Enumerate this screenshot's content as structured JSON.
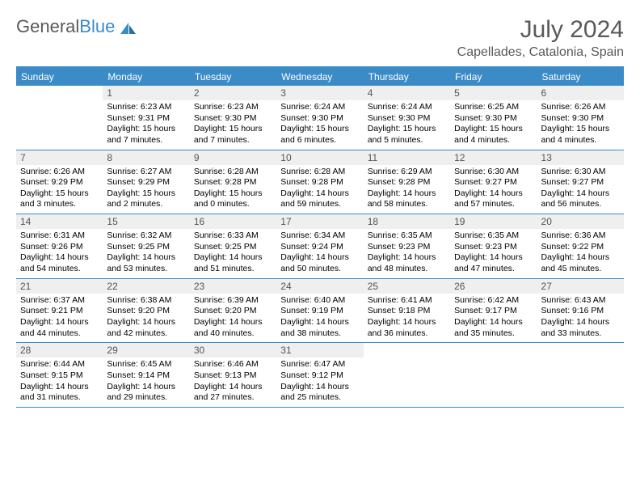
{
  "brand": {
    "part1": "General",
    "part2": "Blue"
  },
  "title": {
    "month": "July 2024",
    "location": "Capellades, Catalonia, Spain"
  },
  "colors": {
    "accent": "#3b8bc6",
    "header_text": "#58595b",
    "daynum_bg": "#efefef",
    "body_text": "#000000",
    "page_bg": "#ffffff"
  },
  "weekdays": [
    "Sunday",
    "Monday",
    "Tuesday",
    "Wednesday",
    "Thursday",
    "Friday",
    "Saturday"
  ],
  "start_offset": 1,
  "days": [
    {
      "n": 1,
      "sunrise": "6:23 AM",
      "sunset": "9:31 PM",
      "daylight": "15 hours and 7 minutes."
    },
    {
      "n": 2,
      "sunrise": "6:23 AM",
      "sunset": "9:30 PM",
      "daylight": "15 hours and 7 minutes."
    },
    {
      "n": 3,
      "sunrise": "6:24 AM",
      "sunset": "9:30 PM",
      "daylight": "15 hours and 6 minutes."
    },
    {
      "n": 4,
      "sunrise": "6:24 AM",
      "sunset": "9:30 PM",
      "daylight": "15 hours and 5 minutes."
    },
    {
      "n": 5,
      "sunrise": "6:25 AM",
      "sunset": "9:30 PM",
      "daylight": "15 hours and 4 minutes."
    },
    {
      "n": 6,
      "sunrise": "6:26 AM",
      "sunset": "9:30 PM",
      "daylight": "15 hours and 4 minutes."
    },
    {
      "n": 7,
      "sunrise": "6:26 AM",
      "sunset": "9:29 PM",
      "daylight": "15 hours and 3 minutes."
    },
    {
      "n": 8,
      "sunrise": "6:27 AM",
      "sunset": "9:29 PM",
      "daylight": "15 hours and 2 minutes."
    },
    {
      "n": 9,
      "sunrise": "6:28 AM",
      "sunset": "9:28 PM",
      "daylight": "15 hours and 0 minutes."
    },
    {
      "n": 10,
      "sunrise": "6:28 AM",
      "sunset": "9:28 PM",
      "daylight": "14 hours and 59 minutes."
    },
    {
      "n": 11,
      "sunrise": "6:29 AM",
      "sunset": "9:28 PM",
      "daylight": "14 hours and 58 minutes."
    },
    {
      "n": 12,
      "sunrise": "6:30 AM",
      "sunset": "9:27 PM",
      "daylight": "14 hours and 57 minutes."
    },
    {
      "n": 13,
      "sunrise": "6:30 AM",
      "sunset": "9:27 PM",
      "daylight": "14 hours and 56 minutes."
    },
    {
      "n": 14,
      "sunrise": "6:31 AM",
      "sunset": "9:26 PM",
      "daylight": "14 hours and 54 minutes."
    },
    {
      "n": 15,
      "sunrise": "6:32 AM",
      "sunset": "9:25 PM",
      "daylight": "14 hours and 53 minutes."
    },
    {
      "n": 16,
      "sunrise": "6:33 AM",
      "sunset": "9:25 PM",
      "daylight": "14 hours and 51 minutes."
    },
    {
      "n": 17,
      "sunrise": "6:34 AM",
      "sunset": "9:24 PM",
      "daylight": "14 hours and 50 minutes."
    },
    {
      "n": 18,
      "sunrise": "6:35 AM",
      "sunset": "9:23 PM",
      "daylight": "14 hours and 48 minutes."
    },
    {
      "n": 19,
      "sunrise": "6:35 AM",
      "sunset": "9:23 PM",
      "daylight": "14 hours and 47 minutes."
    },
    {
      "n": 20,
      "sunrise": "6:36 AM",
      "sunset": "9:22 PM",
      "daylight": "14 hours and 45 minutes."
    },
    {
      "n": 21,
      "sunrise": "6:37 AM",
      "sunset": "9:21 PM",
      "daylight": "14 hours and 44 minutes."
    },
    {
      "n": 22,
      "sunrise": "6:38 AM",
      "sunset": "9:20 PM",
      "daylight": "14 hours and 42 minutes."
    },
    {
      "n": 23,
      "sunrise": "6:39 AM",
      "sunset": "9:20 PM",
      "daylight": "14 hours and 40 minutes."
    },
    {
      "n": 24,
      "sunrise": "6:40 AM",
      "sunset": "9:19 PM",
      "daylight": "14 hours and 38 minutes."
    },
    {
      "n": 25,
      "sunrise": "6:41 AM",
      "sunset": "9:18 PM",
      "daylight": "14 hours and 36 minutes."
    },
    {
      "n": 26,
      "sunrise": "6:42 AM",
      "sunset": "9:17 PM",
      "daylight": "14 hours and 35 minutes."
    },
    {
      "n": 27,
      "sunrise": "6:43 AM",
      "sunset": "9:16 PM",
      "daylight": "14 hours and 33 minutes."
    },
    {
      "n": 28,
      "sunrise": "6:44 AM",
      "sunset": "9:15 PM",
      "daylight": "14 hours and 31 minutes."
    },
    {
      "n": 29,
      "sunrise": "6:45 AM",
      "sunset": "9:14 PM",
      "daylight": "14 hours and 29 minutes."
    },
    {
      "n": 30,
      "sunrise": "6:46 AM",
      "sunset": "9:13 PM",
      "daylight": "14 hours and 27 minutes."
    },
    {
      "n": 31,
      "sunrise": "6:47 AM",
      "sunset": "9:12 PM",
      "daylight": "14 hours and 25 minutes."
    }
  ],
  "labels": {
    "sunrise": "Sunrise:",
    "sunset": "Sunset:",
    "daylight": "Daylight:"
  }
}
